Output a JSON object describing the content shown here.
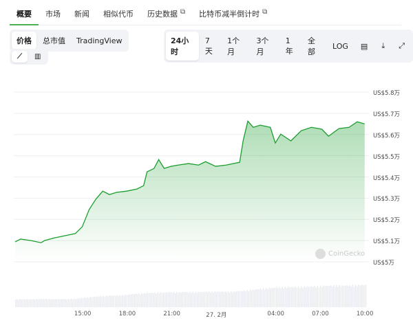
{
  "tabs": [
    {
      "label": "概要",
      "active": true
    },
    {
      "label": "市场"
    },
    {
      "label": "新闻"
    },
    {
      "label": "相似代币"
    },
    {
      "label": "历史数据",
      "external": true
    },
    {
      "label": "比特币减半倒计时",
      "external": true
    }
  ],
  "metric_toggle": [
    {
      "label": "价格",
      "active": true
    },
    {
      "label": "总市值"
    },
    {
      "label": "TradingView"
    }
  ],
  "range_toggle": [
    {
      "label": "24小时",
      "active": true
    },
    {
      "label": "7天"
    },
    {
      "label": "1个月"
    },
    {
      "label": "3个月"
    },
    {
      "label": "1年"
    },
    {
      "label": "全部"
    },
    {
      "label": "LOG"
    }
  ],
  "range_icons": [
    "calendar-icon",
    "download-icon",
    "expand-icon"
  ],
  "chart_style_toggle": [
    {
      "icon": "line-chart-icon",
      "active": true
    },
    {
      "icon": "candlestick-chart-icon"
    }
  ],
  "watermark": "CoinGecko",
  "chart_data": {
    "type": "area",
    "color": "#1a9d2e",
    "grid": true,
    "y_ticks": [
      {
        "v": 58000,
        "label": "US$5.8万"
      },
      {
        "v": 57000,
        "label": "US$5.7万"
      },
      {
        "v": 56000,
        "label": "US$5.6万"
      },
      {
        "v": 55000,
        "label": "US$5.5万"
      },
      {
        "v": 54000,
        "label": "US$5.4万"
      },
      {
        "v": 53000,
        "label": "US$5.3万"
      },
      {
        "v": 52000,
        "label": "US$5.2万"
      },
      {
        "v": 51000,
        "label": "US$5.1万"
      },
      {
        "v": 50000,
        "label": "US$5万"
      }
    ],
    "ylim": [
      50000,
      58000
    ],
    "x_ticks": [
      {
        "t": "02-26T15:00",
        "label": "15:00"
      },
      {
        "t": "02-26T18:00",
        "label": "18:00"
      },
      {
        "t": "02-26T21:00",
        "label": "21:00"
      },
      {
        "t": "02-27T00:00",
        "label": "27. 2月"
      },
      {
        "t": "02-27T04:00",
        "label": "04:00"
      },
      {
        "t": "02-27T07:00",
        "label": "07:00"
      },
      {
        "t": "02-27T10:00",
        "label": "10:00"
      }
    ],
    "xlim": [
      "02-26T10:27",
      "02-27T10:08"
    ],
    "points": [
      [
        "02-26T10:27",
        50940
      ],
      [
        "02-26T10:49",
        51070
      ],
      [
        "02-26T11:31",
        51000
      ],
      [
        "02-26T12:12",
        50900
      ],
      [
        "02-26T12:26",
        51000
      ],
      [
        "02-26T13:07",
        51130
      ],
      [
        "02-26T13:49",
        51230
      ],
      [
        "02-26T14:30",
        51330
      ],
      [
        "02-26T14:58",
        51650
      ],
      [
        "02-26T15:26",
        52460
      ],
      [
        "02-26T15:53",
        52950
      ],
      [
        "02-26T16:21",
        53330
      ],
      [
        "02-26T16:48",
        53170
      ],
      [
        "02-26T17:16",
        53270
      ],
      [
        "02-26T17:57",
        53330
      ],
      [
        "02-26T18:39",
        53430
      ],
      [
        "02-26T19:06",
        53590
      ],
      [
        "02-26T19:20",
        54240
      ],
      [
        "02-26T19:48",
        54400
      ],
      [
        "02-26T20:07",
        54820
      ],
      [
        "02-26T20:29",
        54400
      ],
      [
        "02-26T20:57",
        54500
      ],
      [
        "02-26T21:25",
        54560
      ],
      [
        "02-26T22:07",
        54630
      ],
      [
        "02-26T22:48",
        54560
      ],
      [
        "02-26T23:16",
        54720
      ],
      [
        "02-26T23:57",
        54500
      ],
      [
        "02-27T00:39",
        54560
      ],
      [
        "02-27T01:34",
        54690
      ],
      [
        "02-27T01:48",
        55700
      ],
      [
        "02-27T02:07",
        56630
      ],
      [
        "02-27T02:29",
        56340
      ],
      [
        "02-27T02:57",
        56440
      ],
      [
        "02-27T03:38",
        56340
      ],
      [
        "02-27T03:58",
        55600
      ],
      [
        "02-27T04:20",
        56020
      ],
      [
        "02-27T05:01",
        55700
      ],
      [
        "02-27T05:43",
        56180
      ],
      [
        "02-27T06:24",
        56340
      ],
      [
        "02-27T07:06",
        56250
      ],
      [
        "02-27T07:33",
        55920
      ],
      [
        "02-27T08:15",
        56280
      ],
      [
        "02-27T08:56",
        56340
      ],
      [
        "02-27T09:29",
        56600
      ],
      [
        "02-27T09:59",
        56500
      ]
    ],
    "volume_relative": [
      0.35,
      0.35,
      0.36,
      0.35,
      0.37,
      0.45,
      0.5,
      0.52,
      0.6,
      0.63,
      0.65,
      0.66,
      0.67,
      0.68,
      0.68,
      0.72,
      0.8,
      0.86,
      0.88,
      0.9,
      0.93,
      0.95,
      0.95,
      0.98
    ]
  }
}
